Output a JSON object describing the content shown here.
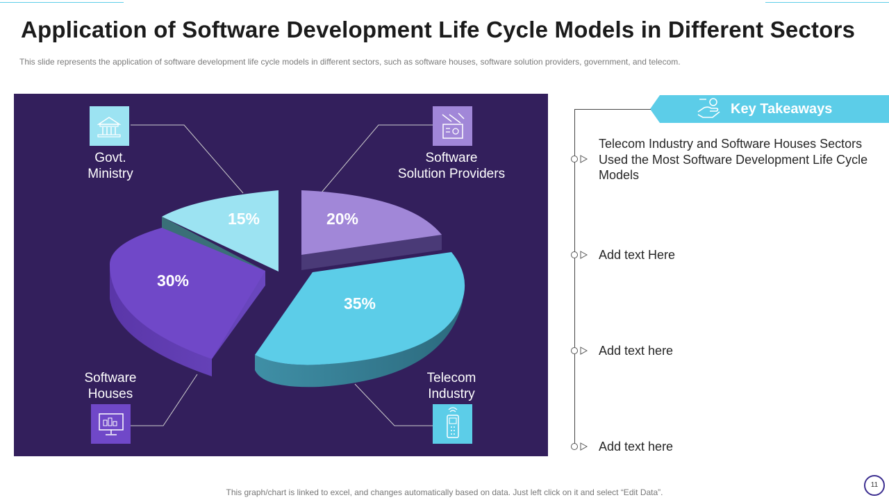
{
  "header": {
    "title": "Application of Software Development Life Cycle Models in Different Sectors",
    "subtitle": "This slide represents the application of software  development  life cycle models in different  sectors, such as software houses, software  solution providers,  government,  and telecom."
  },
  "chart_data": {
    "type": "pie",
    "title": "",
    "slices": [
      {
        "name": "Govt. Ministry",
        "label_lines": [
          "Govt.",
          "Ministry"
        ],
        "value": 15,
        "value_label": "15%",
        "color": "#9ce3f2"
      },
      {
        "name": "Software Solution Providers",
        "label_lines": [
          "Software",
          "Solution Providers"
        ],
        "value": 20,
        "value_label": "20%",
        "color": "#a187d8"
      },
      {
        "name": "Telecom Industry",
        "label_lines": [
          "Telecom",
          "Industry"
        ],
        "value": 35,
        "value_label": "35%",
        "color": "#5ccde8"
      },
      {
        "name": "Software Houses",
        "label_lines": [
          "Software",
          "Houses"
        ],
        "value": 30,
        "value_label": "30%",
        "color": "#7048c8"
      }
    ]
  },
  "takeaways": {
    "title": "Key Takeaways",
    "items": [
      {
        "text": "Telecom Industry and Software Houses Sectors Used the Most Software Development Life Cycle Models"
      },
      {
        "text": "Add text Here"
      },
      {
        "text": "Add text here"
      },
      {
        "text": "Add text here"
      }
    ]
  },
  "footer": {
    "note": "This graph/chart is linked to excel, and changes automatically based on data. Just left click on it and select “Edit Data”.",
    "page_number": "11"
  },
  "colors": {
    "panel": "#331f5c",
    "accent": "#5ccde8",
    "purple": "#7048c8",
    "lavender": "#a187d8",
    "light_blue": "#9ce3f2"
  }
}
